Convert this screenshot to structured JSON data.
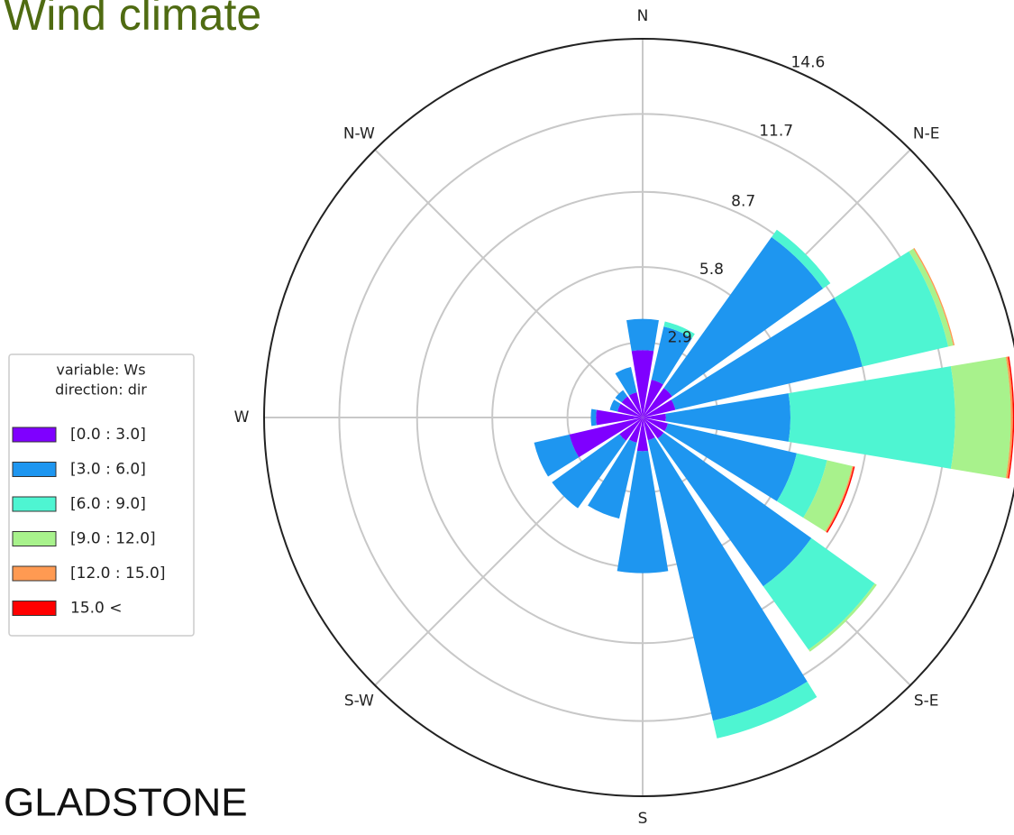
{
  "title": "Wind climate",
  "location": "GLADSTONE",
  "chart_data": {
    "type": "windrose",
    "categories": [
      "N",
      null,
      "N-E",
      null,
      null,
      null,
      "S-E",
      null,
      "S",
      null,
      "S-W",
      null,
      "W",
      null,
      "N-W",
      null
    ],
    "legend_title": [
      "variable: Ws",
      "direction: dir"
    ],
    "rlim": [
      0,
      14.6
    ],
    "rticks": [
      2.9,
      5.8,
      8.7,
      11.7,
      14.6
    ],
    "series": [
      {
        "name": "[0.0 : 3.0]",
        "color": "#7f00ff",
        "values": [
          2.6,
          1.5,
          1.4,
          1.3,
          0.9,
          1.0,
          1.0,
          0.9,
          1.3,
          1.0,
          1.1,
          2.9,
          1.8,
          1.0,
          1.0,
          1.0
        ]
      },
      {
        "name": "[3.0 : 6.0]",
        "color": "#1e96f0",
        "values": [
          1.2,
          2.1,
          7.15,
          7.4,
          4.8,
          5.1,
          7.0,
          11.1,
          4.7,
          3.0,
          3.2,
          1.4,
          0.2,
          0.3,
          0.3,
          1.0
        ]
      },
      {
        "name": "[6.0 : 9.0]",
        "color": "#4ef5d2",
        "values": [
          0,
          0.2,
          0.35,
          3.4,
          6.35,
          1.2,
          3.0,
          0.7,
          0,
          0,
          0,
          0,
          0,
          0,
          0,
          0
        ]
      },
      {
        "name": "[9.0 : 12.0]",
        "color": "#a8f28c",
        "values": [
          0,
          0,
          0,
          0.2,
          2.15,
          1.0,
          0.1,
          0,
          0,
          0,
          0,
          0,
          0,
          0,
          0,
          0
        ]
      },
      {
        "name": "[12.0 : 15.0]",
        "color": "#ff9a52",
        "values": [
          0,
          0,
          0,
          0.05,
          0.08,
          0.05,
          0,
          0,
          0,
          0,
          0,
          0,
          0,
          0,
          0,
          0
        ]
      },
      {
        "name": "15.0 <",
        "color": "#ff0000",
        "values": [
          0,
          0,
          0,
          0,
          0.05,
          0.05,
          0,
          0,
          0,
          0,
          0,
          0,
          0,
          0,
          0,
          0
        ]
      }
    ]
  }
}
